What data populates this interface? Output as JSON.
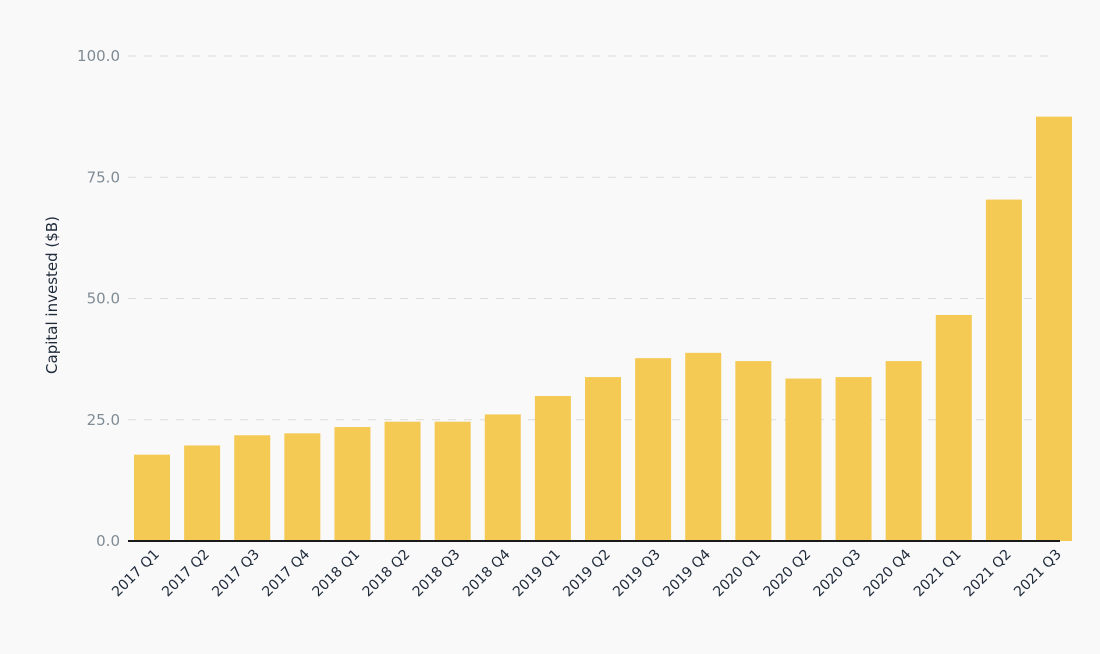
{
  "chart_data": {
    "type": "bar",
    "title": "",
    "xlabel": "",
    "ylabel": "Capital invested ($B)",
    "ylim": [
      0,
      100
    ],
    "yticks": [
      "0.0",
      "25.0",
      "50.0",
      "75.0",
      "100.0"
    ],
    "grid": true,
    "legend": "none",
    "bar_color": "#f4ca55",
    "categories": [
      "2017 Q1",
      "2017 Q2",
      "2017 Q3",
      "2017 Q4",
      "2018 Q1",
      "2018 Q2",
      "2018 Q3",
      "2018 Q4",
      "2019 Q1",
      "2019 Q2",
      "2019 Q3",
      "2019 Q4",
      "2020 Q1",
      "2020 Q2",
      "2020 Q3",
      "2020 Q4",
      "2021 Q1",
      "2021 Q2",
      "2021 Q3"
    ],
    "values": [
      17.8,
      19.7,
      21.8,
      22.2,
      23.5,
      24.6,
      24.6,
      26.1,
      29.9,
      33.8,
      37.7,
      38.8,
      37.1,
      33.5,
      33.8,
      37.1,
      46.6,
      70.4,
      87.5
    ]
  }
}
